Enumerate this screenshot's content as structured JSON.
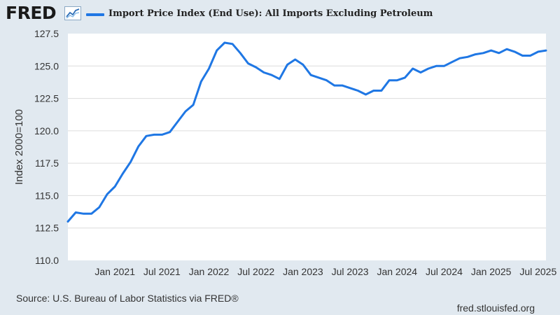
{
  "header": {
    "logo_text": "FRED",
    "logo_icon": "line-chart-icon",
    "series_title": "Import Price Index (End Use): All Imports Excluding Petroleum",
    "series_color": "#1f77e4"
  },
  "chart_data": {
    "type": "line",
    "ylabel": "Index 2000=100",
    "ylim": [
      110.0,
      127.5
    ],
    "y_ticks": [
      "110.0",
      "112.5",
      "115.0",
      "117.5",
      "120.0",
      "122.5",
      "125.0",
      "127.5"
    ],
    "x_tick_labels": [
      "Jan 2021",
      "Jul 2021",
      "Jan 2022",
      "Jul 2022",
      "Jan 2023",
      "Jul 2023",
      "Jan 2024",
      "Jul 2024",
      "Jan 2025",
      "Jul 2025"
    ],
    "grid": "horizontal",
    "legend": "top-left",
    "series": [
      {
        "name": "Import Price Index (End Use): All Imports Excluding Petroleum",
        "color": "#1f77e4",
        "x": [
          "2020-07",
          "2020-08",
          "2020-09",
          "2020-10",
          "2020-11",
          "2020-12",
          "2021-01",
          "2021-02",
          "2021-03",
          "2021-04",
          "2021-05",
          "2021-06",
          "2021-07",
          "2021-08",
          "2021-09",
          "2021-10",
          "2021-11",
          "2021-12",
          "2022-01",
          "2022-02",
          "2022-03",
          "2022-04",
          "2022-05",
          "2022-06",
          "2022-07",
          "2022-08",
          "2022-09",
          "2022-10",
          "2022-11",
          "2022-12",
          "2023-01",
          "2023-02",
          "2023-03",
          "2023-04",
          "2023-05",
          "2023-06",
          "2023-07",
          "2023-08",
          "2023-09",
          "2023-10",
          "2023-11",
          "2023-12",
          "2024-01",
          "2024-02",
          "2024-03",
          "2024-04",
          "2024-05",
          "2024-06",
          "2024-07",
          "2024-08",
          "2024-09",
          "2024-10",
          "2024-11",
          "2024-12",
          "2025-01",
          "2025-02",
          "2025-03",
          "2025-04",
          "2025-05",
          "2025-06",
          "2025-07",
          "2025-08"
        ],
        "values": [
          113.0,
          113.7,
          113.6,
          113.6,
          114.1,
          115.1,
          115.7,
          116.7,
          117.6,
          118.8,
          119.6,
          119.7,
          119.7,
          119.9,
          120.7,
          121.5,
          122.0,
          123.8,
          124.8,
          126.2,
          126.8,
          126.7,
          126.0,
          125.2,
          124.9,
          124.5,
          124.3,
          124.0,
          125.1,
          125.5,
          125.1,
          124.3,
          124.1,
          123.9,
          123.5,
          123.5,
          123.3,
          123.1,
          122.8,
          123.1,
          123.1,
          123.9,
          123.9,
          124.1,
          124.8,
          124.5,
          124.8,
          125.0,
          125.0,
          125.3,
          125.6,
          125.7,
          125.9,
          126.0,
          126.2,
          126.0,
          126.3,
          126.1,
          125.8,
          125.8,
          126.1,
          126.2
        ]
      }
    ]
  },
  "footer": {
    "source": "Source: U.S. Bureau of Labor Statistics via FRED®",
    "url": "fred.stlouisfed.org"
  }
}
